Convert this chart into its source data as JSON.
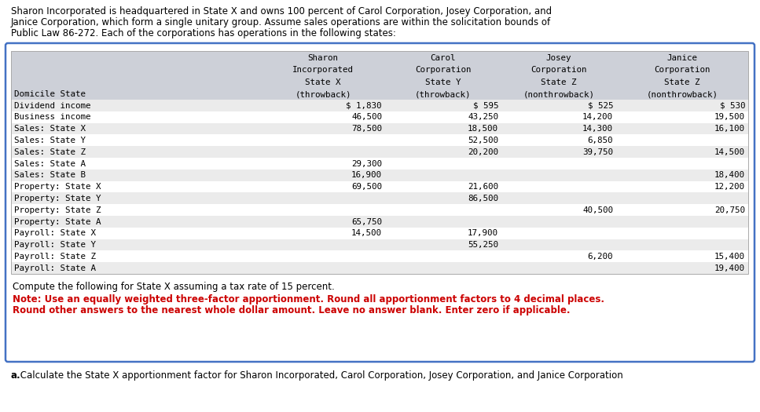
{
  "intro_text": "Sharon Incorporated is headquartered in State X and owns 100 percent of Carol Corporation, Josey Corporation, and\nJanice Corporation, which form a single unitary group. Assume sales operations are within the solicitation bounds of\nPublic Law 86-272. Each of the corporations has operations in the following states:",
  "col_headers": [
    [
      "",
      "Sharon",
      "Carol",
      "Josey",
      "Janice"
    ],
    [
      "",
      "Incorporated",
      "Corporation",
      "Corporation",
      "Corporation"
    ],
    [
      "",
      "State X",
      "State Y",
      "State Z",
      "State Z"
    ],
    [
      "Domicile State",
      "(throwback)",
      "(throwback)",
      "(nonthrowback)",
      "(nonthrowback)"
    ]
  ],
  "rows": [
    [
      "Dividend income",
      "$ 1,830",
      "$ 595",
      "$ 525",
      "$ 530"
    ],
    [
      "Business income",
      "46,500",
      "43,250",
      "14,200",
      "19,500"
    ],
    [
      "Sales: State X",
      "78,500",
      "18,500",
      "14,300",
      "16,100"
    ],
    [
      "Sales: State Y",
      "",
      "52,500",
      "6,850",
      ""
    ],
    [
      "Sales: State Z",
      "",
      "20,200",
      "39,750",
      "14,500"
    ],
    [
      "Sales: State A",
      "29,300",
      "",
      "",
      ""
    ],
    [
      "Sales: State B",
      "16,900",
      "",
      "",
      "18,400"
    ],
    [
      "Property: State X",
      "69,500",
      "21,600",
      "",
      "12,200"
    ],
    [
      "Property: State Y",
      "",
      "86,500",
      "",
      ""
    ],
    [
      "Property: State Z",
      "",
      "",
      "40,500",
      "20,750"
    ],
    [
      "Property: State A",
      "65,750",
      "",
      "",
      ""
    ],
    [
      "Payroll: State X",
      "14,500",
      "17,900",
      "",
      ""
    ],
    [
      "Payroll: State Y",
      "",
      "55,250",
      "",
      ""
    ],
    [
      "Payroll: State Z",
      "",
      "",
      "6,200",
      "15,400"
    ],
    [
      "Payroll: State A",
      "",
      "",
      "",
      "19,400"
    ]
  ],
  "compute_text": "Compute the following for State X assuming a tax rate of 15 percent.",
  "note_line1": "Note: Use an equally weighted three-factor apportionment. Round all apportionment factors to 4 decimal places.",
  "note_line2": "Round other answers to the nearest whole dollar amount. Leave no answer blank. Enter zero if applicable.",
  "footer_bold": "a.",
  "footer_text": " Calculate the State X apportionment factor for Sharon Incorporated, Carol Corporation, Josey Corporation, and Janice Corporation",
  "bg_color": "#ffffff",
  "border_color": "#4472c4",
  "table_header_bg": "#cdd0d8",
  "row_even_bg": "#ebebeb",
  "row_odd_bg": "#ffffff",
  "text_color": "#000000",
  "note_color": "#cc0000",
  "mono_font": "DejaVu Sans Mono",
  "sans_font": "DejaVu Sans"
}
